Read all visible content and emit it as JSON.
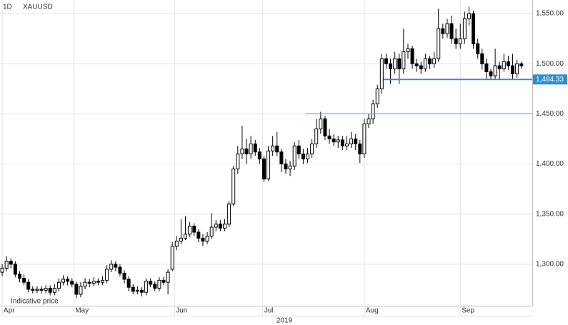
{
  "chart_data": {
    "type": "candlestick",
    "interval": "1D",
    "symbol": "XAUUSD",
    "note": "Indicative price",
    "year_label": "2019",
    "ylim": [
      1258.6,
      1563.6
    ],
    "yticks": [
      {
        "value": 1300,
        "label": "1,300.00"
      },
      {
        "value": 1350,
        "label": "1,350.00"
      },
      {
        "value": 1400,
        "label": "1,400.00"
      },
      {
        "value": 1450,
        "label": "1,450.00"
      },
      {
        "value": 1500,
        "label": "1,500.00"
      },
      {
        "value": 1550,
        "label": "1,550.00"
      }
    ],
    "xlim": [
      -0.5,
      121.5
    ],
    "xticks": [
      {
        "value": 0,
        "label": "Apr"
      },
      {
        "value": 16.4,
        "label": "May"
      },
      {
        "value": 39.5,
        "label": "Jun"
      },
      {
        "value": 59.7,
        "label": "Jul"
      },
      {
        "value": 83,
        "label": "Aug"
      },
      {
        "value": 105,
        "label": "Sep"
      }
    ],
    "grid": true,
    "horizontal_lines": [
      {
        "value": 1484.33,
        "label": "1,484.33",
        "color": "#2b8fd6"
      },
      {
        "value": 1450,
        "color": "#5aaee6"
      }
    ],
    "open": [
      1292,
      1296,
      1303,
      1300,
      1290,
      1286,
      1282,
      1275,
      1274,
      1275,
      1274,
      1276,
      1272,
      1276,
      1282,
      1285,
      1283,
      1280,
      1270,
      1278,
      1282,
      1281,
      1283,
      1282,
      1284,
      1295,
      1300,
      1297,
      1291,
      1285,
      1277,
      1273,
      1274,
      1272,
      1283,
      1280,
      1276,
      1284,
      1282,
      1295,
      1318,
      1323,
      1326,
      1330,
      1338,
      1332,
      1326,
      1323,
      1328,
      1337,
      1340,
      1336,
      1340,
      1360,
      1395,
      1410,
      1415,
      1410,
      1420,
      1412,
      1405,
      1385,
      1413,
      1418,
      1412,
      1400,
      1395,
      1398,
      1418,
      1410,
      1405,
      1410,
      1420,
      1435,
      1445,
      1428,
      1425,
      1422,
      1424,
      1418,
      1420,
      1425,
      1420,
      1410,
      1440,
      1445,
      1460,
      1475,
      1505,
      1500,
      1495,
      1505,
      1495,
      1512,
      1515,
      1500,
      1498,
      1495,
      1505,
      1500,
      1505,
      1535,
      1530,
      1540,
      1525,
      1520,
      1525,
      1545,
      1550,
      1520,
      1510,
      1500,
      1492,
      1488,
      1498,
      1495,
      1502,
      1498,
      1490,
      1500
    ],
    "high": [
      1300,
      1308,
      1306,
      1303,
      1293,
      1290,
      1285,
      1278,
      1278,
      1278,
      1279,
      1279,
      1280,
      1286,
      1289,
      1288,
      1286,
      1283,
      1282,
      1286,
      1285,
      1287,
      1286,
      1288,
      1299,
      1304,
      1303,
      1300,
      1294,
      1288,
      1280,
      1278,
      1277,
      1286,
      1286,
      1283,
      1287,
      1287,
      1295,
      1322,
      1328,
      1345,
      1348,
      1342,
      1341,
      1335,
      1330,
      1332,
      1351,
      1344,
      1344,
      1345,
      1363,
      1398,
      1418,
      1438,
      1425,
      1428,
      1424,
      1416,
      1408,
      1418,
      1428,
      1432,
      1415,
      1405,
      1403,
      1422,
      1424,
      1415,
      1416,
      1425,
      1445,
      1452,
      1448,
      1435,
      1430,
      1428,
      1428,
      1428,
      1432,
      1430,
      1424,
      1445,
      1450,
      1464,
      1479,
      1510,
      1510,
      1505,
      1512,
      1510,
      1535,
      1520,
      1518,
      1505,
      1502,
      1510,
      1508,
      1512,
      1555,
      1540,
      1545,
      1548,
      1535,
      1540,
      1552,
      1557,
      1553,
      1525,
      1515,
      1505,
      1495,
      1515,
      1502,
      1510,
      1508,
      1510,
      1504,
      1502
    ],
    "low": [
      1288,
      1293,
      1296,
      1287,
      1282,
      1279,
      1272,
      1271,
      1271,
      1271,
      1271,
      1269,
      1269,
      1273,
      1279,
      1279,
      1277,
      1266,
      1267,
      1275,
      1277,
      1278,
      1279,
      1279,
      1281,
      1292,
      1293,
      1288,
      1281,
      1273,
      1270,
      1270,
      1268,
      1269,
      1277,
      1273,
      1273,
      1279,
      1270,
      1293,
      1314,
      1320,
      1324,
      1327,
      1328,
      1322,
      1318,
      1320,
      1325,
      1333,
      1333,
      1333,
      1337,
      1358,
      1390,
      1405,
      1400,
      1405,
      1408,
      1400,
      1382,
      1383,
      1408,
      1408,
      1392,
      1390,
      1388,
      1394,
      1405,
      1400,
      1401,
      1406,
      1416,
      1430,
      1424,
      1420,
      1418,
      1416,
      1414,
      1414,
      1416,
      1414,
      1401,
      1406,
      1436,
      1440,
      1456,
      1470,
      1495,
      1480,
      1490,
      1480,
      1490,
      1505,
      1495,
      1492,
      1490,
      1492,
      1495,
      1496,
      1502,
      1525,
      1526,
      1520,
      1515,
      1515,
      1520,
      1538,
      1515,
      1505,
      1494,
      1485,
      1484,
      1485,
      1485,
      1492,
      1494,
      1485,
      1486,
      1495
    ],
    "close": [
      1296,
      1303,
      1300,
      1290,
      1286,
      1282,
      1275,
      1274,
      1275,
      1274,
      1276,
      1272,
      1276,
      1282,
      1285,
      1283,
      1280,
      1270,
      1278,
      1282,
      1281,
      1283,
      1282,
      1284,
      1295,
      1300,
      1297,
      1291,
      1285,
      1277,
      1273,
      1274,
      1272,
      1283,
      1280,
      1276,
      1284,
      1282,
      1292,
      1318,
      1323,
      1326,
      1330,
      1338,
      1332,
      1326,
      1323,
      1328,
      1337,
      1340,
      1336,
      1340,
      1360,
      1395,
      1410,
      1415,
      1410,
      1420,
      1412,
      1405,
      1385,
      1413,
      1418,
      1412,
      1400,
      1395,
      1398,
      1418,
      1410,
      1405,
      1410,
      1420,
      1435,
      1445,
      1428,
      1425,
      1422,
      1424,
      1418,
      1420,
      1425,
      1420,
      1410,
      1440,
      1445,
      1460,
      1475,
      1505,
      1500,
      1495,
      1505,
      1495,
      1512,
      1515,
      1500,
      1498,
      1495,
      1505,
      1500,
      1505,
      1535,
      1530,
      1540,
      1525,
      1520,
      1525,
      1545,
      1550,
      1520,
      1510,
      1500,
      1492,
      1488,
      1498,
      1495,
      1502,
      1498,
      1490,
      1500,
      1498
    ]
  }
}
